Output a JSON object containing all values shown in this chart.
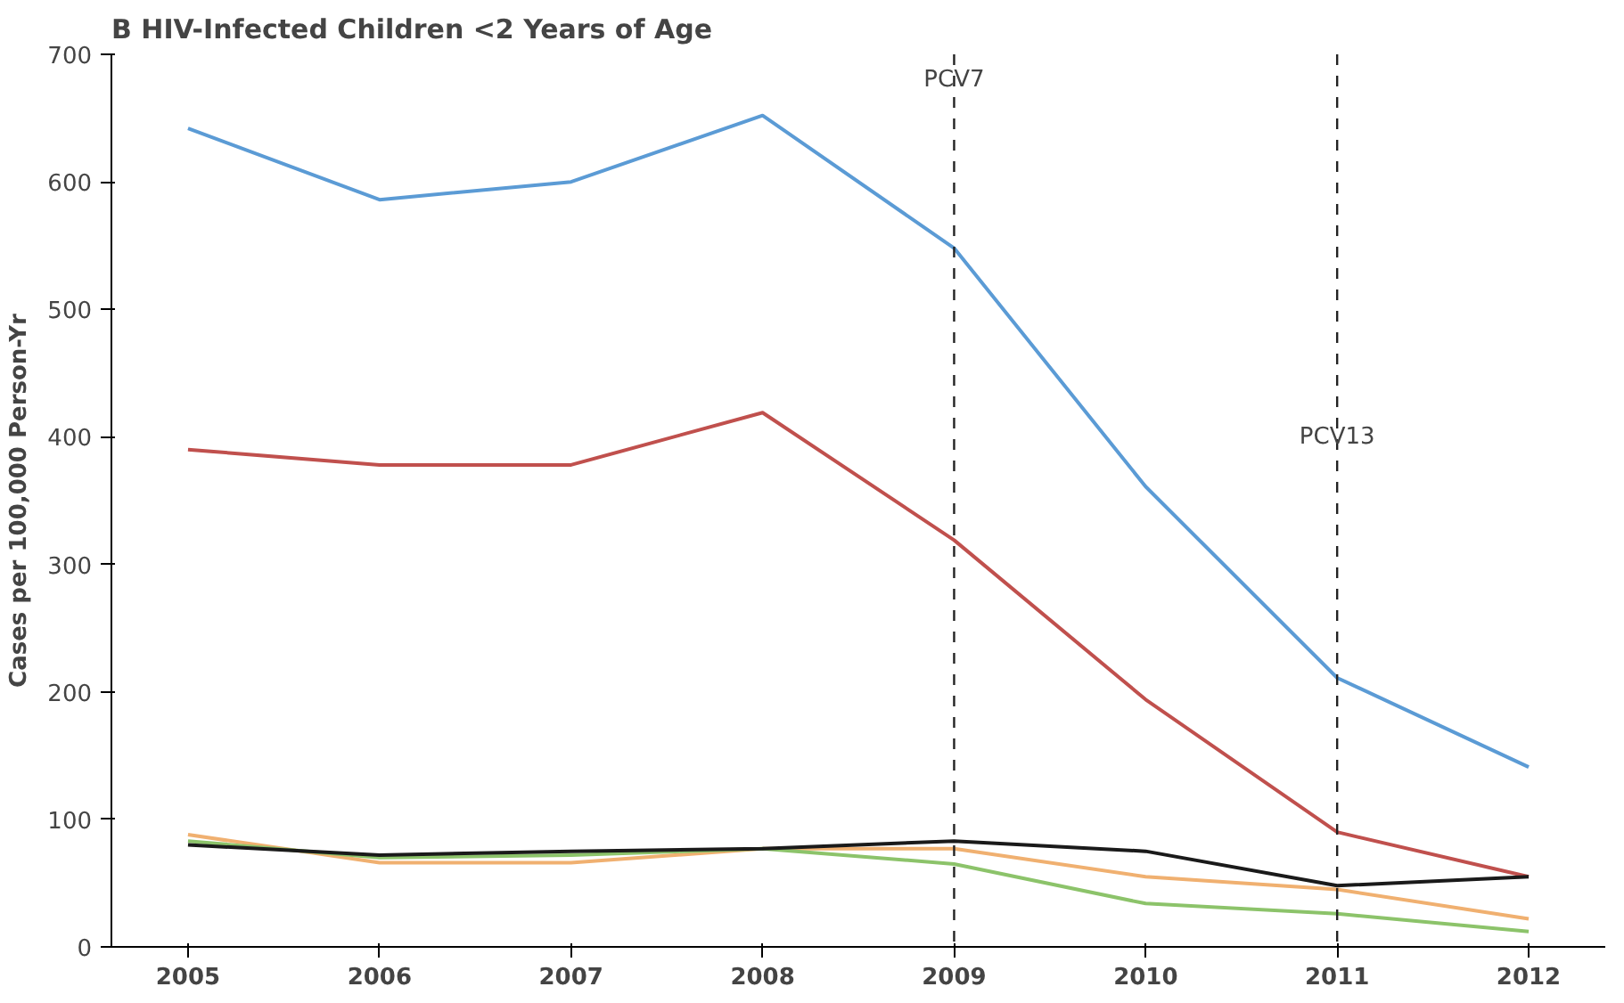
{
  "chart_data": {
    "type": "line",
    "title": "B  HIV-Infected Children <2 Years of Age",
    "ylabel": "Cases per 100,000 Person-Yr",
    "x": [
      2005,
      2006,
      2007,
      2008,
      2009,
      2010,
      2011,
      2012
    ],
    "xlim": [
      2004.6,
      2012.4
    ],
    "xticks": [
      2005,
      2006,
      2007,
      2008,
      2009,
      2010,
      2011,
      2012
    ],
    "ylim": [
      0,
      700
    ],
    "yticks": [
      0,
      100,
      200,
      300,
      400,
      500,
      600,
      700
    ],
    "series": [
      {
        "color": "#5b9bd5",
        "values": [
          642,
          586,
          600,
          652,
          548,
          361,
          211,
          141
        ]
      },
      {
        "color": "#c0504d",
        "values": [
          390,
          378,
          378,
          419,
          319,
          194,
          90,
          55
        ]
      },
      {
        "color": "#f0b070",
        "values": [
          88,
          66,
          66,
          77,
          77,
          55,
          45,
          22
        ]
      },
      {
        "color": "#8cc36a",
        "values": [
          83,
          70,
          72,
          77,
          65,
          34,
          26,
          12
        ]
      },
      {
        "color": "#1a1a1a",
        "values": [
          80,
          72,
          75,
          77,
          83,
          75,
          48,
          55
        ]
      }
    ],
    "ref_lines": [
      {
        "axis": "x",
        "value": 2009,
        "label": "PCV7",
        "color": "#222222",
        "line_style": "dashed"
      },
      {
        "axis": "x",
        "value": 2011,
        "label": "PCV13",
        "color": "#222222",
        "line_style": "dashed"
      }
    ],
    "grid": false,
    "marker": "none",
    "line_style": "solid"
  }
}
